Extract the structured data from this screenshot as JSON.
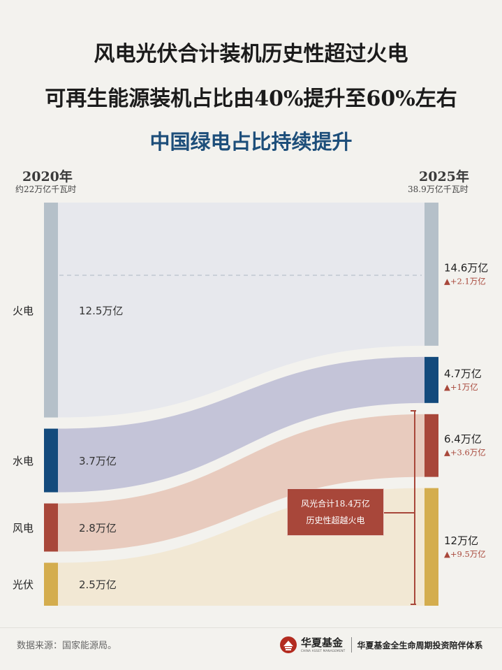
{
  "titles": {
    "line1": "风电光伏合计装机历史性超过火电",
    "line2": "可再生能源装机占比由40%提升至60%左右",
    "subtitle": "中国绿电占比持续提升"
  },
  "left_header": {
    "year": "2020年",
    "total": "约22万亿千瓦时"
  },
  "right_header": {
    "year": "2025年",
    "total": "38.9万亿千瓦时"
  },
  "colors": {
    "thermal_bar": "#b5c0c9",
    "thermal_flow": "#e7e8ed",
    "hydro_bar": "#134a7c",
    "hydro_flow": "#c4c4d8",
    "wind_bar": "#a8473a",
    "wind_flow": "#e8cbbe",
    "solar_bar": "#d4ad4e",
    "solar_flow": "#f2e8d4",
    "increase_text": "#a8473a"
  },
  "chart_data": {
    "type": "sankey",
    "title": "中国绿电占比持续提升",
    "unit": "万亿",
    "years": [
      "2020年",
      "2025年"
    ],
    "categories": [
      "火电",
      "水电",
      "风电",
      "光伏"
    ],
    "series": [
      {
        "name": "火电",
        "value_2020": 12.5,
        "label_2020": "12.5万亿",
        "value_2025": 14.6,
        "label_2025": "14.6万亿",
        "change": "▲+2.1万亿"
      },
      {
        "name": "水电",
        "value_2020": 3.7,
        "label_2020": "3.7万亿",
        "value_2025": 4.7,
        "label_2025": "4.7万亿",
        "change": "▲+1万亿"
      },
      {
        "name": "风电",
        "value_2020": 2.8,
        "label_2020": "2.8万亿",
        "value_2025": 6.4,
        "label_2025": "6.4万亿",
        "change": "▲+3.6万亿"
      },
      {
        "name": "光伏",
        "value_2020": 2.5,
        "label_2020": "2.5万亿",
        "value_2025": 12,
        "label_2025": "12万亿",
        "change": "▲+9.5万亿"
      }
    ],
    "annotation": {
      "line1": "风光合计18.4万亿",
      "line2": "历史性超越火电"
    }
  },
  "footer": {
    "source": "数据来源：国家能源局。",
    "brand_name": "华夏基金",
    "brand_en": "CHINA ASSET MANAGEMENT",
    "slogan": "华夏基金全生命周期投资陪伴体系"
  }
}
